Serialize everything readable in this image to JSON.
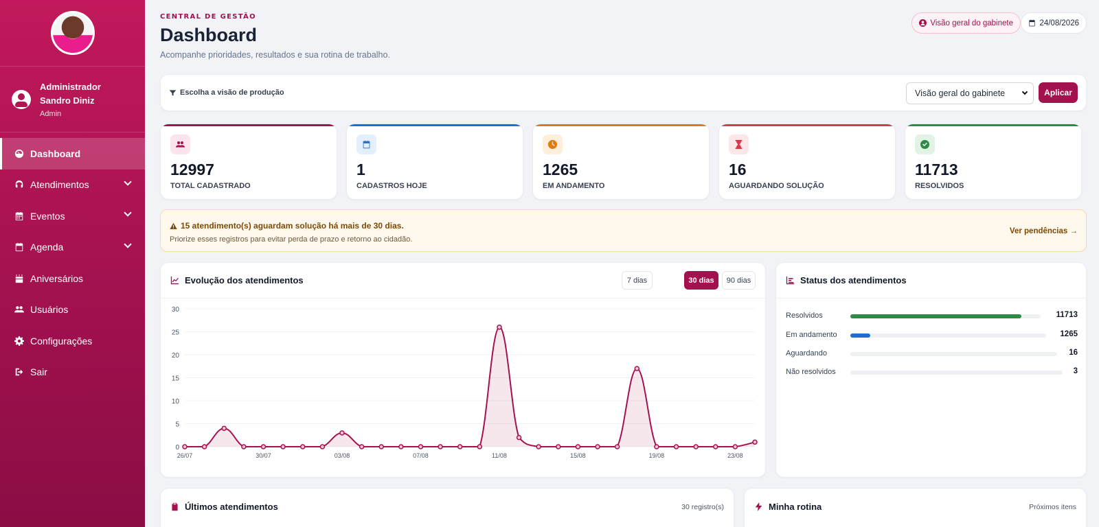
{
  "sidebar": {
    "user": {
      "line1": "Administrador",
      "line2": "Sandro Diniz",
      "role": "Admin"
    },
    "items": [
      {
        "label": "Dashboard",
        "icon": "dashboard-icon",
        "active": true
      },
      {
        "label": "Atendimentos",
        "icon": "headset-icon",
        "expandable": true
      },
      {
        "label": "Eventos",
        "icon": "calendar-icon",
        "expandable": true
      },
      {
        "label": "Agenda",
        "icon": "calendar-check-icon",
        "expandable": true
      },
      {
        "label": "Aniversários",
        "icon": "cake-icon"
      },
      {
        "label": "Usuários",
        "icon": "users-icon"
      },
      {
        "label": "Configurações",
        "icon": "gear-icon"
      },
      {
        "label": "Sair",
        "icon": "sign-out-icon"
      }
    ]
  },
  "header": {
    "eyebrow": "CENTRAL DE GESTÃO",
    "title": "Dashboard",
    "subtitle": "Acompanhe prioridades, resultados e sua rotina de trabalho.",
    "badge_view": "Visão geral do gabinete",
    "badge_date": "24/08/2026"
  },
  "filter": {
    "label": "Escolha a visão de produção",
    "selected": "Visão geral do gabinete",
    "apply_label": "Aplicar"
  },
  "kpis": [
    {
      "value": "12997",
      "label": "TOTAL CADASTRADO",
      "color": "#a3114f",
      "bg": "#fce4ee",
      "icon": "users-icon"
    },
    {
      "value": "1",
      "label": "CADASTROS HOJE",
      "color": "#1e6fd0",
      "bg": "#e3effc",
      "icon": "calendar-icon"
    },
    {
      "value": "1265",
      "label": "EM ANDAMENTO",
      "color": "#e07b0d",
      "bg": "#fdefdc",
      "icon": "clock-icon"
    },
    {
      "value": "16",
      "label": "AGUARDANDO SOLUÇÃO",
      "color": "#d93a4a",
      "bg": "#fde6e8",
      "icon": "hourglass-icon"
    },
    {
      "value": "11713",
      "label": "RESOLVIDOS",
      "color": "#2e8b45",
      "bg": "#e2f3e6",
      "icon": "check-circle-icon"
    }
  ],
  "alert": {
    "title": "15 atendimento(s) aguardam solução há mais de 30 dias.",
    "subtitle": "Priorize esses registros para evitar perda de prazo e retorno ao cidadão.",
    "link": "Ver pendências →"
  },
  "evolution": {
    "title": "Evolução dos atendimentos",
    "ranges": [
      "7 dias",
      "30 dias",
      "90 dias"
    ],
    "active_range": "30 dias"
  },
  "chart_data": {
    "type": "area",
    "x": [
      "26/07",
      "27/07",
      "28/07",
      "29/07",
      "30/07",
      "31/07",
      "01/08",
      "02/08",
      "03/08",
      "04/08",
      "05/08",
      "06/08",
      "07/08",
      "08/08",
      "09/08",
      "10/08",
      "11/08",
      "12/08",
      "13/08",
      "14/08",
      "15/08",
      "16/08",
      "17/08",
      "18/08",
      "19/08",
      "20/08",
      "21/08",
      "22/08",
      "23/08",
      "24/08"
    ],
    "x_tick_labels": [
      "26/07",
      "30/07",
      "03/08",
      "07/08",
      "11/08",
      "15/08",
      "19/08",
      "23/08"
    ],
    "y_tick_labels": [
      "0",
      "5",
      "10",
      "15",
      "20",
      "25",
      "30"
    ],
    "series": [
      {
        "values": [
          0,
          0,
          4,
          0,
          0,
          0,
          0,
          0,
          3,
          0,
          0,
          0,
          0,
          0,
          0,
          0,
          26,
          2,
          0,
          0,
          0,
          0,
          0,
          17,
          0,
          0,
          0,
          0,
          0,
          1
        ],
        "color": "#a3114f"
      }
    ],
    "ylim": [
      0,
      30
    ],
    "grid": true
  },
  "status": {
    "title": "Status dos atendimentos",
    "rows": [
      {
        "label": "Resolvidos",
        "value": "11713",
        "fraction": 0.9,
        "color": "#2e8b45"
      },
      {
        "label": "Em andamento",
        "value": "1265",
        "fraction": 0.1,
        "color": "#1e6fd0"
      },
      {
        "label": "Aguardando",
        "value": "16",
        "fraction": 0.0,
        "color": "#d93a4a"
      },
      {
        "label": "Não resolvidos",
        "value": "3",
        "fraction": 0.0,
        "color": "#6b7280"
      }
    ]
  },
  "latest": {
    "title": "Últimos atendimentos",
    "meta": "30 registro(s)"
  },
  "routine": {
    "title": "Minha rotina",
    "meta": "Próximos itens"
  }
}
